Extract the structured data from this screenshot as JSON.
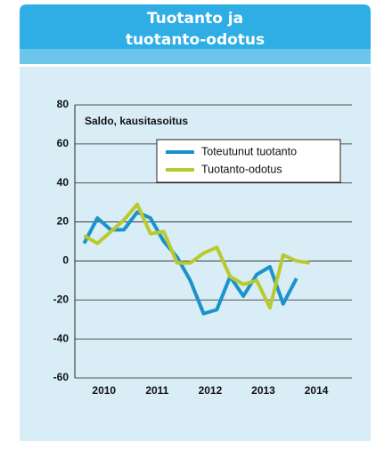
{
  "chart_data": {
    "type": "line",
    "title": [
      "Tuotanto ja",
      "tuotanto-odotus"
    ],
    "subtitle": "Saldo, kausitasoitus",
    "x": [
      2010.125,
      2010.375,
      2010.625,
      2010.875,
      2011.125,
      2011.375,
      2011.625,
      2011.875,
      2012.125,
      2012.375,
      2012.625,
      2012.875,
      2013.125,
      2013.375,
      2013.625,
      2013.875,
      2014.125,
      2014.375
    ],
    "series": [
      {
        "name": "Toteutunut tuotanto",
        "color": "#1b93c9",
        "values": [
          9,
          22,
          16,
          16,
          25,
          22,
          10,
          2,
          -10,
          -27,
          -25,
          -8,
          -18,
          -7,
          -3,
          -22,
          -9,
          null
        ]
      },
      {
        "name": "Tuotanto-odotus",
        "color": "#b8ca2e",
        "values": [
          13,
          9,
          15,
          21,
          29,
          14,
          15,
          -1,
          -1,
          4,
          7,
          -8,
          -12,
          -10,
          -24,
          3,
          0,
          -1
        ]
      }
    ],
    "xlim": [
      2009.95,
      2015.17
    ],
    "xticks": [
      {
        "value": 2010.5,
        "label": "2010"
      },
      {
        "value": 2011.5,
        "label": "2011"
      },
      {
        "value": 2012.5,
        "label": "2012"
      },
      {
        "value": 2013.5,
        "label": "2013"
      },
      {
        "value": 2014.5,
        "label": "2014"
      }
    ],
    "ylim": [
      -60,
      80
    ],
    "yticks": [
      -60,
      -40,
      -20,
      0,
      20,
      40,
      60,
      80
    ],
    "grid": true,
    "legend": "upper right"
  }
}
